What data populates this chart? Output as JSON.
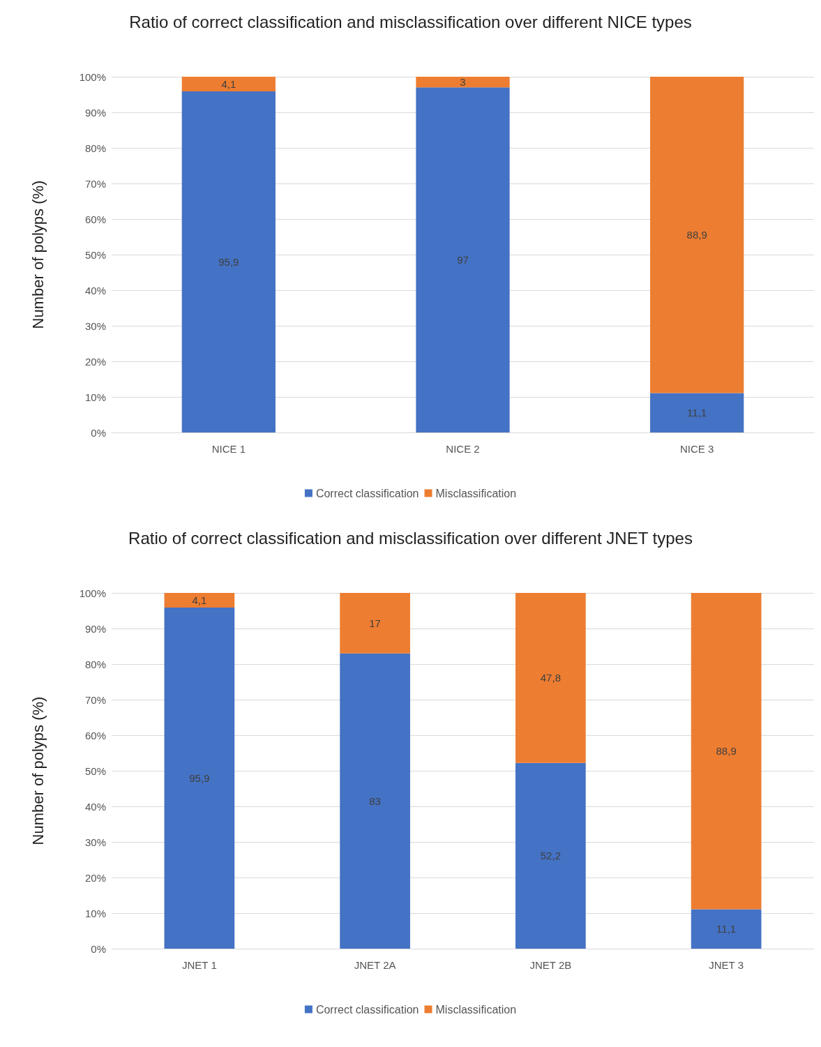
{
  "chart_data": [
    {
      "type": "bar",
      "title": "Ratio of correct classification and misclassification over different NICE types",
      "ylabel": "Number of polyps (%)",
      "categories": [
        "NICE 1",
        "NICE 2",
        "NICE 3"
      ],
      "stacked": true,
      "ylim": [
        0,
        100
      ],
      "yticks": [
        {
          "value": 0,
          "label": "0%"
        },
        {
          "value": 10,
          "label": "10%"
        },
        {
          "value": 20,
          "label": "20%"
        },
        {
          "value": 30,
          "label": "30%"
        },
        {
          "value": 40,
          "label": "40%"
        },
        {
          "value": 50,
          "label": "50%"
        },
        {
          "value": 60,
          "label": "60%"
        },
        {
          "value": 70,
          "label": "70%"
        },
        {
          "value": 80,
          "label": "80%"
        },
        {
          "value": 90,
          "label": "90%"
        },
        {
          "value": 100,
          "label": "100%"
        }
      ],
      "grid": "y",
      "legend": "bottom",
      "series": [
        {
          "name": "Correct classification",
          "color": "#4472c4",
          "values": [
            95.9,
            97,
            11.1
          ],
          "value_labels": [
            "95,9",
            "97",
            "11,1"
          ]
        },
        {
          "name": "Misclassification",
          "color": "#ed7d31",
          "values": [
            4.1,
            3,
            88.9
          ],
          "value_labels": [
            "4,1",
            "3",
            "88,9"
          ]
        }
      ]
    },
    {
      "type": "bar",
      "title": "Ratio of correct classification and misclassification over different JNET types",
      "ylabel": "Number of polyps (%)",
      "categories": [
        "JNET 1",
        "JNET 2A",
        "JNET 2B",
        "JNET 3"
      ],
      "stacked": true,
      "ylim": [
        0,
        100
      ],
      "yticks": [
        {
          "value": 0,
          "label": "0%"
        },
        {
          "value": 10,
          "label": "10%"
        },
        {
          "value": 20,
          "label": "20%"
        },
        {
          "value": 30,
          "label": "30%"
        },
        {
          "value": 40,
          "label": "40%"
        },
        {
          "value": 50,
          "label": "50%"
        },
        {
          "value": 60,
          "label": "60%"
        },
        {
          "value": 70,
          "label": "70%"
        },
        {
          "value": 80,
          "label": "80%"
        },
        {
          "value": 90,
          "label": "90%"
        },
        {
          "value": 100,
          "label": "100%"
        }
      ],
      "grid": "y",
      "legend": "bottom",
      "series": [
        {
          "name": "Correct classification",
          "color": "#4472c4",
          "values": [
            95.9,
            83,
            52.2,
            11.1
          ],
          "value_labels": [
            "95,9",
            "83",
            "52,2",
            "11,1"
          ]
        },
        {
          "name": "Misclassification",
          "color": "#ed7d31",
          "values": [
            4.1,
            17,
            47.8,
            88.9
          ],
          "value_labels": [
            "4,1",
            "17",
            "47,8",
            "88,9"
          ]
        }
      ]
    }
  ]
}
